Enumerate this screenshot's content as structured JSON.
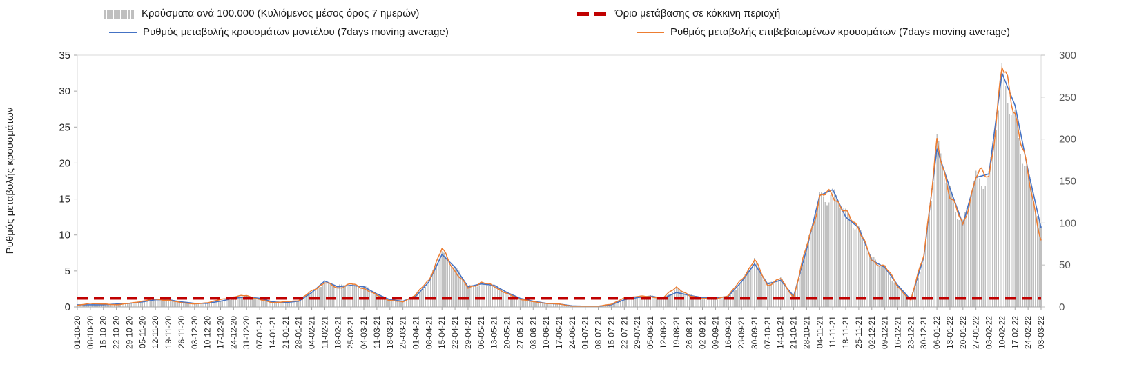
{
  "chart_data": {
    "type": "combo",
    "title": "",
    "legend_position": "top",
    "grid": false,
    "categories": [
      "01-10-20",
      "08-10-20",
      "15-10-20",
      "22-10-20",
      "29-10-20",
      "05-11-20",
      "12-11-20",
      "19-11-20",
      "26-11-20",
      "03-12-20",
      "10-12-20",
      "17-12-20",
      "24-12-20",
      "31-12-20",
      "07-01-21",
      "14-01-21",
      "21-01-21",
      "28-01-21",
      "04-02-21",
      "11-02-21",
      "18-02-21",
      "25-02-21",
      "04-03-21",
      "11-03-21",
      "18-03-21",
      "25-03-21",
      "01-04-21",
      "08-04-21",
      "15-04-21",
      "22-04-21",
      "29-04-21",
      "06-05-21",
      "13-05-21",
      "20-05-21",
      "27-05-21",
      "03-06-21",
      "10-06-21",
      "17-06-21",
      "24-06-21",
      "01-07-21",
      "08-07-21",
      "15-07-21",
      "22-07-21",
      "29-07-21",
      "05-08-21",
      "12-08-21",
      "19-08-21",
      "26-08-21",
      "02-09-21",
      "09-09-21",
      "16-09-21",
      "23-09-21",
      "30-09-21",
      "07-10-21",
      "14-10-21",
      "21-10-21",
      "28-10-21",
      "04-11-21",
      "11-11-21",
      "18-11-21",
      "25-11-21",
      "02-12-21",
      "09-12-21",
      "16-12-21",
      "23-12-21",
      "30-12-21",
      "06-01-22",
      "13-01-22",
      "20-01-22",
      "27-01-22",
      "03-02-22",
      "10-02-22",
      "17-02-22",
      "24-02-22",
      "03-03-22"
    ],
    "series": [
      {
        "name": "Κρούσματα ανά 100.000 (Κυλιόμενος μέσος όρος 7 ημερών)",
        "type": "bar",
        "axis": "right",
        "color": "#c0c0c0",
        "values": [
          2,
          3,
          3,
          3,
          4,
          6,
          9,
          9,
          6,
          5,
          5,
          7,
          10,
          13,
          10,
          6,
          5,
          7,
          17,
          30,
          24,
          27,
          24,
          15,
          9,
          7,
          13,
          30,
          65,
          47,
          24,
          28,
          25,
          17,
          10,
          7,
          4,
          3,
          1.5,
          1,
          1,
          3,
          9,
          12,
          13,
          11,
          22,
          14,
          11,
          10,
          13,
          30,
          55,
          28,
          33,
          12,
          70,
          130,
          138,
          108,
          96,
          55,
          48,
          25,
          9,
          60,
          188,
          140,
          98,
          152,
          158,
          265,
          230,
          152,
          92
        ]
      },
      {
        "name": "Ρυθμός μεταβολής κρουσμάτων μοντέλου (7days moving average)",
        "type": "line",
        "axis": "left",
        "color": "#4472c4",
        "values": [
          0.3,
          0.3,
          0.3,
          0.4,
          0.5,
          0.7,
          1.0,
          1.0,
          0.7,
          0.5,
          0.5,
          0.8,
          1.2,
          1.4,
          1.2,
          0.7,
          0.6,
          0.8,
          2.0,
          3.6,
          2.8,
          3.0,
          2.8,
          1.8,
          1.0,
          0.8,
          1.5,
          3.5,
          7.3,
          5.5,
          2.8,
          3.2,
          3.0,
          2.0,
          1.2,
          0.8,
          0.5,
          0.4,
          0.15,
          0.1,
          0.1,
          0.3,
          1.0,
          1.3,
          1.5,
          1.2,
          2.0,
          1.6,
          1.3,
          1.2,
          1.5,
          3.5,
          6.0,
          3.2,
          3.7,
          1.5,
          8.0,
          15.5,
          16.3,
          12.5,
          11.0,
          6.5,
          5.5,
          3.0,
          1.0,
          7.0,
          22.0,
          16.5,
          11.5,
          18.0,
          18.5,
          32.5,
          28.0,
          19.0,
          11.0
        ]
      },
      {
        "name": "Ρυθμός μεταβολής επιβεβαιωμένων κρουσμάτων (7days moving average)",
        "type": "line",
        "axis": "left",
        "color": "#ed7d31",
        "values": [
          0.2,
          0.5,
          0.4,
          0.3,
          0.5,
          0.8,
          1.1,
          0.9,
          0.6,
          0.4,
          0.6,
          1.0,
          1.4,
          1.6,
          1.0,
          0.6,
          0.7,
          0.9,
          2.2,
          3.4,
          2.6,
          3.2,
          2.6,
          1.6,
          0.9,
          0.7,
          1.7,
          3.8,
          8.0,
          5.0,
          2.6,
          3.4,
          2.9,
          1.8,
          1.1,
          0.7,
          0.5,
          0.4,
          0.1,
          0.05,
          0.1,
          0.4,
          1.2,
          1.5,
          1.4,
          1.3,
          2.8,
          1.5,
          1.2,
          1.1,
          1.6,
          3.8,
          6.5,
          3.0,
          3.9,
          1.3,
          8.5,
          15.0,
          16.0,
          12.8,
          11.3,
          6.2,
          5.8,
          2.8,
          0.9,
          7.5,
          22.2,
          16.0,
          11.0,
          18.5,
          18.0,
          33.0,
          27.5,
          18.0,
          9.5
        ]
      },
      {
        "name": "Όριο μετάβασης σε κόκκινη περιοχή",
        "type": "threshold-line",
        "axis": "left",
        "color": "#c00000",
        "value": 1.2
      }
    ],
    "left_axis": {
      "label": "Ρυθμός μεταβολής κρουσμάτων",
      "min": 0,
      "max": 35,
      "ticks": [
        0,
        5,
        10,
        15,
        20,
        25,
        30,
        35
      ]
    },
    "right_axis": {
      "label": "",
      "min": 0,
      "max": 300,
      "ticks": [
        0,
        50,
        100,
        150,
        200,
        250,
        300
      ]
    }
  }
}
